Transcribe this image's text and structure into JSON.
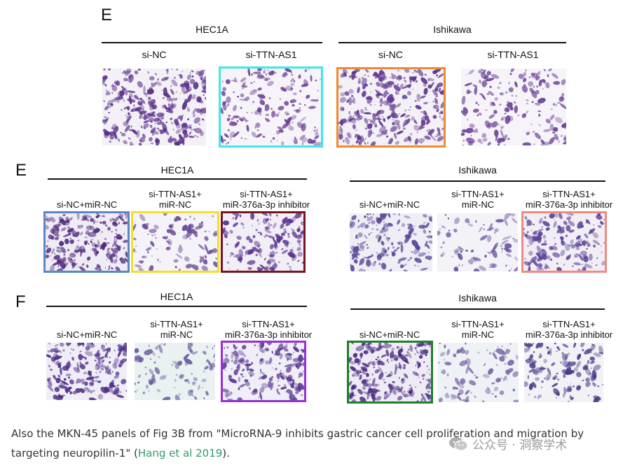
{
  "row1": {
    "letter": "E",
    "groups": [
      "HEC1A",
      "Ishikawa"
    ],
    "conditions": [
      "si-NC",
      "si-TTN-AS1",
      "si-NC",
      "si-TTN-AS1"
    ],
    "borders": [
      "",
      "#3fe6ea",
      "#f08a2e",
      ""
    ]
  },
  "row2": {
    "letter": "E",
    "groups": [
      "HEC1A",
      "Ishikawa"
    ],
    "conditions": [
      [
        "si-NC+miR-NC"
      ],
      [
        "si-TTN-AS1+",
        "miR-NC"
      ],
      [
        "si-TTN-AS1+",
        "miR-376a-3p inhibitor"
      ],
      [
        "si-NC+miR-NC"
      ],
      [
        "si-TTN-AS1+",
        "miR-NC"
      ],
      [
        "si-TTN-AS1+",
        "miR-376a-3p inhibitor"
      ]
    ],
    "borders": [
      "#5b86c4",
      "#f2df2a",
      "#7a1420",
      "",
      "",
      "#f08a80"
    ]
  },
  "row3": {
    "letter": "F",
    "groups": [
      "HEC1A",
      "Ishikawa"
    ],
    "conditions": [
      [
        "si-NC+miR-NC"
      ],
      [
        "si-TTN-AS1+",
        "miR-NC"
      ],
      [
        "si-TTN-AS1+",
        "miR-376a-3p inhibitor"
      ],
      [
        "si-NC+miR-NC"
      ],
      [
        "si-TTN-AS1+",
        "miR-NC"
      ],
      [
        "si-TTN-AS1+",
        "miR-376a-3p inhibitor"
      ]
    ],
    "borders": [
      "",
      "",
      "#9a2fd6",
      "#1f7f2a",
      "",
      ""
    ]
  },
  "caption": {
    "text1": "Also the MKN-45 panels of Fig 3B from \"MicroRNA-9 inhibits gastric cancer cell proliferation and migration by targeting neuropilin-1\" (",
    "link": "Hang et al 2019",
    "text2": ")."
  },
  "watermark": {
    "icon": "wechat-icon",
    "text": "公众号 · 洞察学术"
  }
}
